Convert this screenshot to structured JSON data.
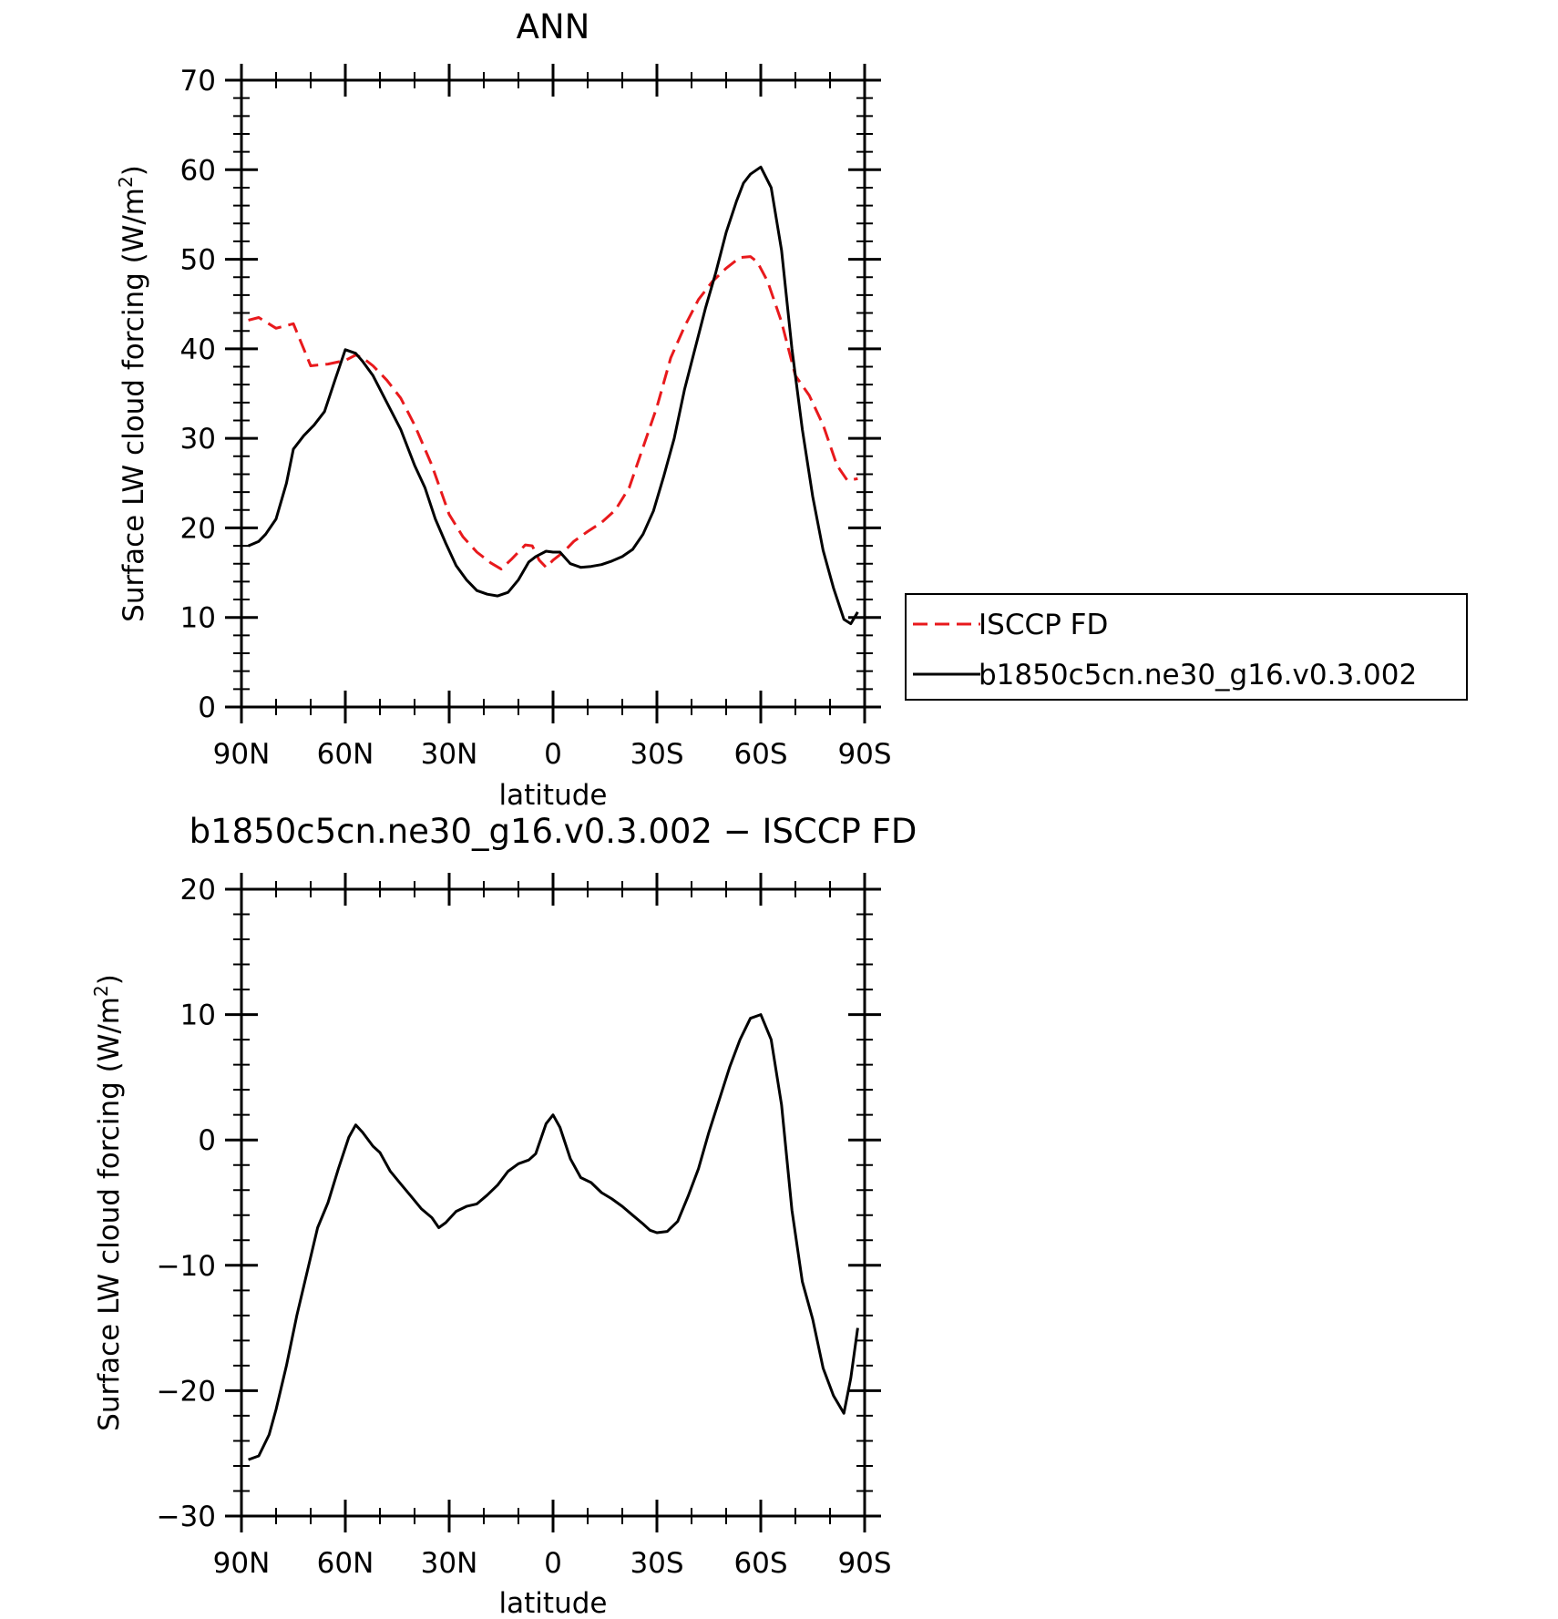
{
  "chart_data": [
    {
      "type": "line",
      "title": "ANN",
      "xlabel": "latitude",
      "ylabel": "Surface LW cloud forcing (W/m",
      "ylabel_sup": "2",
      "ylabel_close": ")",
      "xlim": [
        90,
        -90
      ],
      "ylim": [
        0,
        70
      ],
      "x_tick_values": [
        90,
        60,
        30,
        0,
        -30,
        -60,
        -90
      ],
      "x_tick_labels": [
        "90N",
        "60N",
        "30N",
        "0",
        "30S",
        "60S",
        "90S"
      ],
      "y_tick_values": [
        0,
        10,
        20,
        30,
        40,
        50,
        60,
        70
      ],
      "y_tick_labels": [
        "0",
        "10",
        "20",
        "30",
        "40",
        "50",
        "60",
        "70"
      ],
      "legend_position": "right",
      "series": [
        {
          "name": "ISCCP FD",
          "color": "#e8191c",
          "dash": "dashed",
          "x": [
            88,
            85,
            80,
            75,
            70,
            65,
            60,
            57,
            55,
            52,
            48,
            44,
            40,
            35,
            30,
            26,
            22,
            18,
            15,
            12,
            8,
            6,
            4,
            2,
            0,
            -3,
            -6,
            -10,
            -14,
            -18,
            -22,
            -26,
            -30,
            -34,
            -38,
            -42,
            -46,
            -50,
            -54,
            -57,
            -59,
            -62,
            -66,
            -70,
            -74,
            -78,
            -82,
            -85,
            -88
          ],
          "y": [
            43.2,
            43.5,
            42.3,
            42.8,
            38.1,
            38.3,
            38.7,
            39.3,
            39.0,
            38.1,
            36.5,
            34.5,
            31.5,
            27.0,
            21.5,
            19.0,
            17.3,
            16.1,
            15.4,
            16.5,
            18.1,
            18.0,
            16.4,
            15.6,
            16.4,
            17.3,
            18.5,
            19.6,
            20.6,
            22.0,
            24.5,
            29.0,
            33.5,
            39.0,
            42.5,
            45.5,
            47.5,
            49.0,
            50.2,
            50.3,
            49.7,
            47.5,
            43.0,
            37.0,
            34.8,
            31.5,
            27.0,
            25.3,
            25.5
          ]
        },
        {
          "name": "b1850c5cn.ne30_g16.v0.3.002",
          "color": "#000000",
          "dash": "solid",
          "x": [
            88,
            85,
            83,
            80,
            77,
            75,
            72,
            69,
            66,
            63,
            60,
            57,
            55,
            52,
            48,
            44,
            40,
            37,
            34,
            31,
            28,
            25,
            22,
            19,
            16,
            13,
            10,
            7,
            5,
            2,
            0,
            -2,
            -5,
            -8,
            -11,
            -14,
            -17,
            -20,
            -23,
            -26,
            -29,
            -32,
            -35,
            -38,
            -41,
            -44,
            -47,
            -50,
            -53,
            -55,
            -57,
            -60,
            -63,
            -66,
            -69,
            -72,
            -75,
            -78,
            -81,
            -84,
            -86,
            -88
          ],
          "y": [
            18.0,
            18.5,
            19.3,
            21.0,
            25.0,
            28.8,
            30.3,
            31.5,
            33.0,
            36.5,
            39.9,
            39.5,
            38.6,
            37.0,
            34.0,
            31.0,
            27.0,
            24.5,
            21.0,
            18.3,
            15.8,
            14.2,
            13.0,
            12.6,
            12.4,
            12.8,
            14.2,
            16.2,
            16.8,
            17.4,
            17.3,
            17.3,
            16.0,
            15.6,
            15.7,
            15.9,
            16.3,
            16.8,
            17.6,
            19.3,
            21.9,
            25.8,
            30.0,
            35.5,
            40.0,
            44.5,
            48.5,
            53.0,
            56.5,
            58.5,
            59.5,
            60.3,
            58.0,
            51.0,
            40.0,
            31.0,
            23.5,
            17.5,
            13.3,
            9.8,
            9.3,
            10.6
          ]
        }
      ]
    },
    {
      "type": "line",
      "title": "b1850c5cn.ne30_g16.v0.3.002 − ISCCP FD",
      "xlabel": "latitude",
      "ylabel": "Surface LW cloud forcing (W/m",
      "ylabel_sup": "2",
      "ylabel_close": ")",
      "xlim": [
        90,
        -90
      ],
      "ylim": [
        -30,
        20
      ],
      "x_tick_values": [
        90,
        60,
        30,
        0,
        -30,
        -60,
        -90
      ],
      "x_tick_labels": [
        "90N",
        "60N",
        "30N",
        "0",
        "30S",
        "60S",
        "90S"
      ],
      "y_tick_values": [
        -30,
        -20,
        -10,
        0,
        10,
        20
      ],
      "y_tick_labels": [
        "−30",
        "−20",
        "−10",
        "0",
        "10",
        "20"
      ],
      "series": [
        {
          "color": "#000000",
          "dash": "solid",
          "x": [
            88,
            85,
            82,
            80,
            77,
            74,
            71,
            68,
            65,
            62,
            59,
            57,
            55,
            52,
            50,
            47,
            44,
            41,
            38,
            35,
            33,
            31,
            28,
            25,
            22,
            19,
            16,
            13,
            10,
            7,
            5,
            2,
            0,
            -2,
            -5,
            -8,
            -11,
            -14,
            -17,
            -20,
            -23,
            -26,
            -28,
            -30,
            -33,
            -36,
            -39,
            -42,
            -45,
            -48,
            -51,
            -54,
            -57,
            -60,
            -63,
            -66,
            -69,
            -72,
            -75,
            -78,
            -81,
            -84,
            -86,
            -88
          ],
          "y": [
            -25.5,
            -25.2,
            -23.5,
            -21.5,
            -18.0,
            -14.0,
            -10.5,
            -7.0,
            -5.0,
            -2.3,
            0.2,
            1.2,
            0.6,
            -0.5,
            -1.0,
            -2.5,
            -3.5,
            -4.5,
            -5.5,
            -6.2,
            -7.0,
            -6.6,
            -5.7,
            -5.3,
            -5.1,
            -4.4,
            -3.6,
            -2.5,
            -1.9,
            -1.6,
            -1.1,
            1.3,
            2.0,
            1.0,
            -1.5,
            -3.0,
            -3.4,
            -4.2,
            -4.7,
            -5.3,
            -6.0,
            -6.7,
            -7.2,
            -7.4,
            -7.3,
            -6.5,
            -4.5,
            -2.3,
            0.6,
            3.2,
            5.8,
            8.0,
            9.7,
            10.0,
            8.0,
            2.8,
            -5.6,
            -11.3,
            -14.3,
            -18.2,
            -20.4,
            -21.8,
            -19.0,
            -15.0
          ]
        }
      ]
    }
  ]
}
